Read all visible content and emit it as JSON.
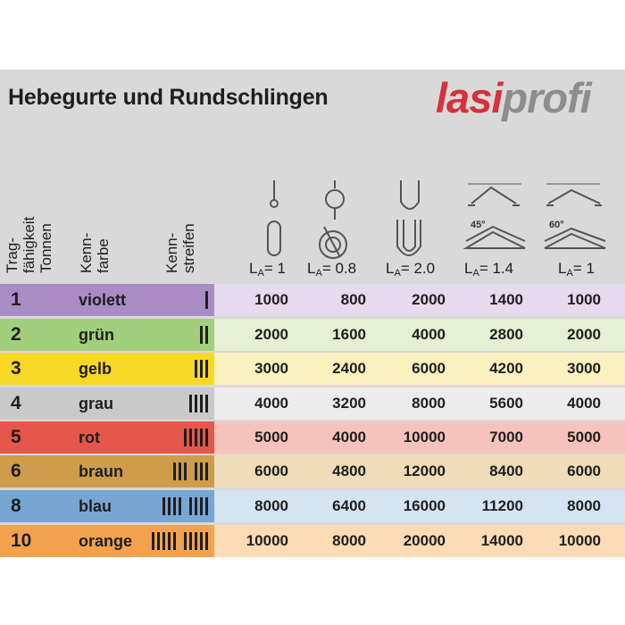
{
  "title": "Hebegurte und Rundschlingen",
  "logo": {
    "part1": "lasi",
    "part2": "profi"
  },
  "headers": {
    "capacity": [
      "Trag-",
      "fähigkeit",
      "Tonnen"
    ],
    "color": [
      "Kenn-",
      "farbe"
    ],
    "stripes": [
      "Kenn-",
      "streifen"
    ]
  },
  "angles": [
    "45°",
    "60°"
  ],
  "load_factors": [
    {
      "label": "L",
      "sub": "A",
      "value": "= 1"
    },
    {
      "label": "L",
      "sub": "A",
      "value": "= 0.8"
    },
    {
      "label": "L",
      "sub": "A",
      "value": "= 2.0"
    },
    {
      "label": "L",
      "sub": "A",
      "value": "= 1.4"
    },
    {
      "label": "L",
      "sub": "A",
      "value": "= 1"
    }
  ],
  "rows": [
    {
      "tonnes": "1",
      "color_name": "violett",
      "stripes": 1,
      "groups": [
        1
      ],
      "left_bg": "#a98cc4",
      "right_bg": "#e6daee",
      "values": [
        "1000",
        "800",
        "2000",
        "1400",
        "1000"
      ]
    },
    {
      "tonnes": "2",
      "color_name": "grün",
      "stripes": 2,
      "groups": [
        2
      ],
      "left_bg": "#a2cf7c",
      "right_bg": "#e4efd3",
      "values": [
        "2000",
        "1600",
        "4000",
        "2800",
        "2000"
      ]
    },
    {
      "tonnes": "3",
      "color_name": "gelb",
      "stripes": 3,
      "groups": [
        3
      ],
      "left_bg": "#f6d825",
      "right_bg": "#fbf1bf",
      "values": [
        "3000",
        "2400",
        "6000",
        "4200",
        "3000"
      ]
    },
    {
      "tonnes": "4",
      "color_name": "grau",
      "stripes": 4,
      "groups": [
        4
      ],
      "left_bg": "#c9c9c9",
      "right_bg": "#ececec",
      "values": [
        "4000",
        "3200",
        "8000",
        "5600",
        "4000"
      ]
    },
    {
      "tonnes": "5",
      "color_name": "rot",
      "stripes": 5,
      "groups": [
        5
      ],
      "left_bg": "#e5574b",
      "right_bg": "#f5c3bb",
      "values": [
        "5000",
        "4000",
        "10000",
        "7000",
        "5000"
      ]
    },
    {
      "tonnes": "6",
      "color_name": "braun",
      "stripes": 6,
      "groups": [
        3,
        3
      ],
      "left_bg": "#cf9c4c",
      "right_bg": "#efdcb8",
      "values": [
        "6000",
        "4800",
        "12000",
        "8400",
        "6000"
      ]
    },
    {
      "tonnes": "8",
      "color_name": "blau",
      "stripes": 8,
      "groups": [
        4,
        4
      ],
      "left_bg": "#78a6d3",
      "right_bg": "#d6e4f1",
      "values": [
        "8000",
        "6400",
        "16000",
        "11200",
        "8000"
      ]
    },
    {
      "tonnes": "10",
      "color_name": "orange",
      "stripes": 10,
      "groups": [
        5,
        5
      ],
      "left_bg": "#f2a24e",
      "right_bg": "#fbdcb5",
      "values": [
        "10000",
        "8000",
        "20000",
        "14000",
        "10000"
      ]
    }
  ]
}
